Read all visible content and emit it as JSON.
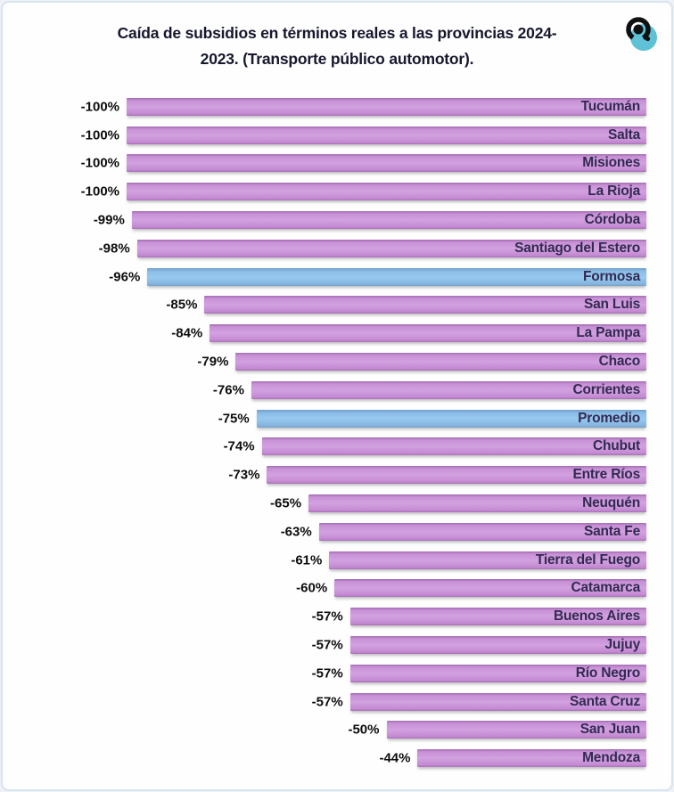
{
  "title": {
    "text": "Caída de subsidios en términos reales a las provincias 2024-2023. (Transporte público automotor).",
    "lines": [
      "Caída de subsidios en términos reales a las provincias 2024-",
      "2023. (Transporte público automotor)."
    ]
  },
  "logo": {
    "name": "brand-logo",
    "teal": "#5ec1d6",
    "ink": "#101010"
  },
  "chart_data": {
    "type": "bar",
    "orientation": "horizontal",
    "title": "Caída de subsidios en términos reales a las provincias 2024-2023. (Transporte público automotor).",
    "value_format": "percent",
    "xlim": [
      -100,
      0
    ],
    "grid": false,
    "legend": false,
    "colors": {
      "bar_default": "#c892d6",
      "bar_highlight": "#8fc2e8",
      "category_label": "#322a52",
      "value_label": "#0d0d0d"
    },
    "highlighted_categories": [
      "Formosa",
      "Promedio"
    ],
    "items": [
      {
        "label": "Tucumán",
        "value": -100
      },
      {
        "label": "Salta",
        "value": -100
      },
      {
        "label": "Misiones",
        "value": -100
      },
      {
        "label": "La Rioja",
        "value": -100
      },
      {
        "label": "Córdoba",
        "value": -99
      },
      {
        "label": "Santiago del Estero",
        "value": -98
      },
      {
        "label": "Formosa",
        "value": -96,
        "highlight": true
      },
      {
        "label": "San Luis",
        "value": -85
      },
      {
        "label": "La Pampa",
        "value": -84
      },
      {
        "label": "Chaco",
        "value": -79
      },
      {
        "label": "Corrientes",
        "value": -76
      },
      {
        "label": "Promedio",
        "value": -75,
        "highlight": true
      },
      {
        "label": "Chubut",
        "value": -74
      },
      {
        "label": "Entre Ríos",
        "value": -73
      },
      {
        "label": "Neuquén",
        "value": -65
      },
      {
        "label": "Santa Fe",
        "value": -63
      },
      {
        "label": "Tierra del Fuego",
        "value": -61
      },
      {
        "label": "Catamarca",
        "value": -60
      },
      {
        "label": "Buenos Aires",
        "value": -57
      },
      {
        "label": "Jujuy",
        "value": -57
      },
      {
        "label": "Río Negro",
        "value": -57
      },
      {
        "label": "Santa Cruz",
        "value": -57
      },
      {
        "label": "San Juan",
        "value": -50
      },
      {
        "label": "Mendoza",
        "value": -44
      }
    ]
  }
}
